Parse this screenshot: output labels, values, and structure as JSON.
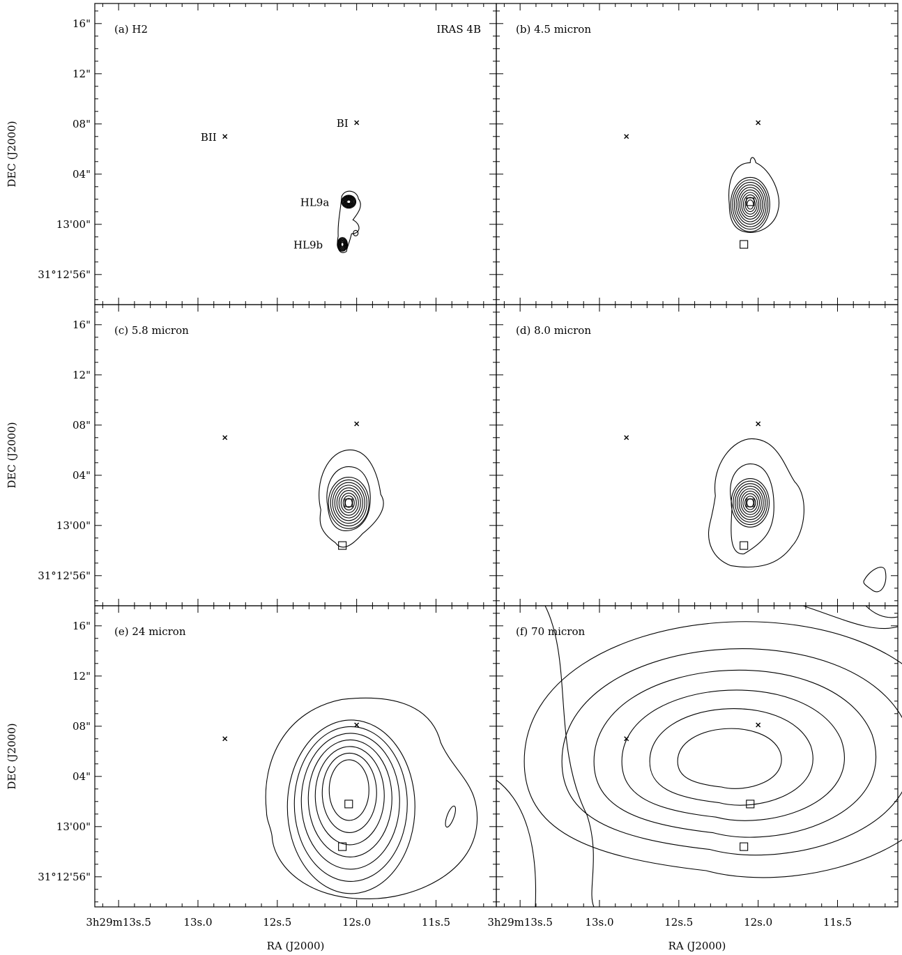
{
  "chart_data": {
    "type": "contour",
    "title": "IRAS 4B",
    "xlabel": "RA (J2000)",
    "ylabel": "DEC (J2000)",
    "x_ticks": [
      {
        "value": 13.5,
        "label": "3h29m13s.5"
      },
      {
        "value": 13.0,
        "label": "13s.0"
      },
      {
        "value": 12.5,
        "label": "12s.5"
      },
      {
        "value": 12.0,
        "label": "12s.0"
      },
      {
        "value": 11.5,
        "label": "11s.5"
      }
    ],
    "y_ticks": [
      {
        "value": 16,
        "label": "16\""
      },
      {
        "value": 12,
        "label": "12\""
      },
      {
        "value": 8,
        "label": "08\""
      },
      {
        "value": 4,
        "label": "04\""
      },
      {
        "value": 0,
        "label": "13'00\""
      },
      {
        "value": -4,
        "label": "31°12'56\""
      }
    ],
    "xlim_ra_seconds": [
      13.65,
      11.12
    ],
    "ylim_arcsec_from_13m00s": [
      -6.4,
      17.6
    ],
    "sources": [
      {
        "name": "BII",
        "ra_s": 12.83,
        "dec_offset": 7.0,
        "marker": "cross"
      },
      {
        "name": "BI",
        "ra_s": 12.0,
        "dec_offset": 8.1,
        "marker": "cross"
      },
      {
        "name": "HL9a",
        "ra_s": 12.05,
        "dec_offset": 1.8,
        "marker": "square"
      },
      {
        "name": "HL9b",
        "ra_s": 12.09,
        "dec_offset": -1.6,
        "marker": "square"
      }
    ],
    "panels": [
      {
        "label": "(a) H2",
        "tag": "IRAS 4B",
        "show_source_names": true
      },
      {
        "label": "(b) 4.5 micron"
      },
      {
        "label": "(c) 5.8 micron"
      },
      {
        "label": "(d) 8.0 micron"
      },
      {
        "label": "(e) 24 micron"
      },
      {
        "label": "(f) 70 micron"
      }
    ]
  }
}
